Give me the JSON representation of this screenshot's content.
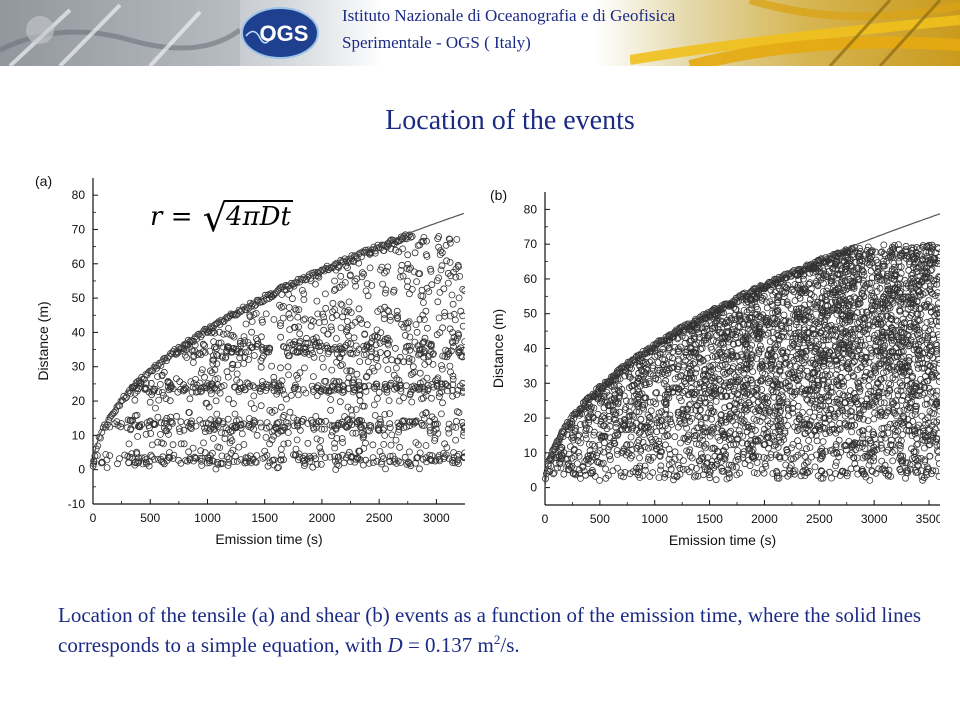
{
  "header": {
    "institute_line1": "Istituto Nazionale di Oceanografia e di Geofisica",
    "institute_line2": "Sperimentale - OGS ( Italy)",
    "logo_text": "OGS"
  },
  "slide_title": "Location of the events",
  "formula": {
    "lhs": "r =",
    "radicand": "4πDt"
  },
  "caption": {
    "text1": "Location of the tensile (a) and shear (b) events as a function of the emission time, where the solid lines corresponds to a simple equation, with ",
    "var": "D",
    "text2": " = 0.137 m",
    "sup": "2",
    "text3": "/s."
  },
  "colors": {
    "title_blue": "#1b2a84",
    "marker_edge": "#333333",
    "line": "#555555"
  },
  "chart_data": [
    {
      "panel_label": "(a)",
      "type": "scatter",
      "xlabel": "Emission time (s)",
      "ylabel": "Distance (m)",
      "xlim": [
        0,
        3250
      ],
      "ylim": [
        -10,
        85
      ],
      "xticks": [
        0,
        500,
        1000,
        1500,
        2000,
        2500,
        3000
      ],
      "yticks": [
        -10,
        0,
        10,
        20,
        30,
        40,
        50,
        60,
        70,
        80
      ],
      "curve": {
        "equation": "r = sqrt(4*pi*D*t)",
        "D": 0.137,
        "unit": "m2/s"
      },
      "event_type": "tensile",
      "bands": [
        {
          "x_range": [
            0,
            3250
          ],
          "y_center": 3,
          "y_spread": 3
        },
        {
          "x_range": [
            100,
            3250
          ],
          "y_center": 13,
          "y_spread": 3
        },
        {
          "x_range": [
            300,
            3250
          ],
          "y_center": 24,
          "y_spread": 3
        },
        {
          "x_range": [
            500,
            3250
          ],
          "y_center": 35,
          "y_spread": 4
        }
      ],
      "envelope_points": {
        "x_range": [
          0,
          2800
        ],
        "note": "dense points along the curve"
      },
      "scatter_points": {
        "x_range": [
          300,
          3250
        ],
        "y_min": 0,
        "y_max": 68,
        "count": 800
      }
    },
    {
      "panel_label": "(b)",
      "type": "scatter",
      "xlabel": "Emission time (s)",
      "ylabel": "Distance (m)",
      "xlim": [
        0,
        3600
      ],
      "ylim": [
        -5,
        85
      ],
      "xticks": [
        0,
        500,
        1000,
        1500,
        2000,
        2500,
        3000,
        3500
      ],
      "yticks": [
        0,
        10,
        20,
        30,
        40,
        50,
        60,
        70,
        80
      ],
      "curve": {
        "equation": "r = sqrt(4*pi*D*t)",
        "D": 0.137,
        "unit": "m2/s"
      },
      "event_type": "shear",
      "envelope_points": {
        "x_range": [
          0,
          2800
        ],
        "note": "dense points along the curve"
      },
      "scatter_points": {
        "x_range": [
          0,
          3600
        ],
        "y_min": 0,
        "y_max": 70,
        "count": 3500
      }
    }
  ]
}
